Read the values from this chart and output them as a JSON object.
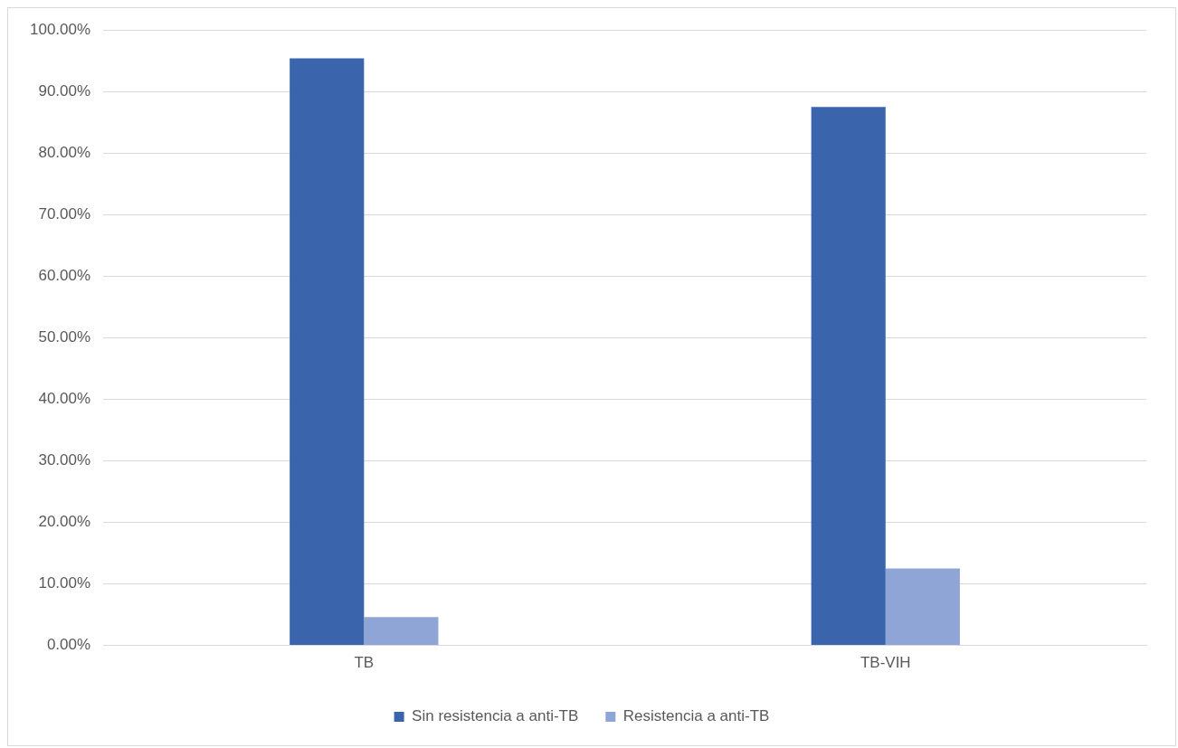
{
  "chart_data": {
    "type": "bar",
    "categories": [
      "TB",
      "TB-VIH"
    ],
    "series": [
      {
        "name": "Sin resistencia a anti-TB",
        "color": "#3a64ac",
        "values": [
          95.4,
          87.5
        ]
      },
      {
        "name": "Resistencia a anti-TB",
        "color": "#8fa5d5",
        "values": [
          4.6,
          12.5
        ]
      }
    ],
    "ylim": [
      0,
      100
    ],
    "yticks": [
      {
        "value": 0,
        "label": "0.00%"
      },
      {
        "value": 10,
        "label": "10.00%"
      },
      {
        "value": 20,
        "label": "20.00%"
      },
      {
        "value": 30,
        "label": "30.00%"
      },
      {
        "value": 40,
        "label": "40.00%"
      },
      {
        "value": 50,
        "label": "50.00%"
      },
      {
        "value": 60,
        "label": "60.00%"
      },
      {
        "value": 70,
        "label": "70.00%"
      },
      {
        "value": 80,
        "label": "80.00%"
      },
      {
        "value": 90,
        "label": "90.00%"
      },
      {
        "value": 100,
        "label": "100.00%"
      }
    ],
    "grid": "y",
    "legend": "bottom"
  }
}
